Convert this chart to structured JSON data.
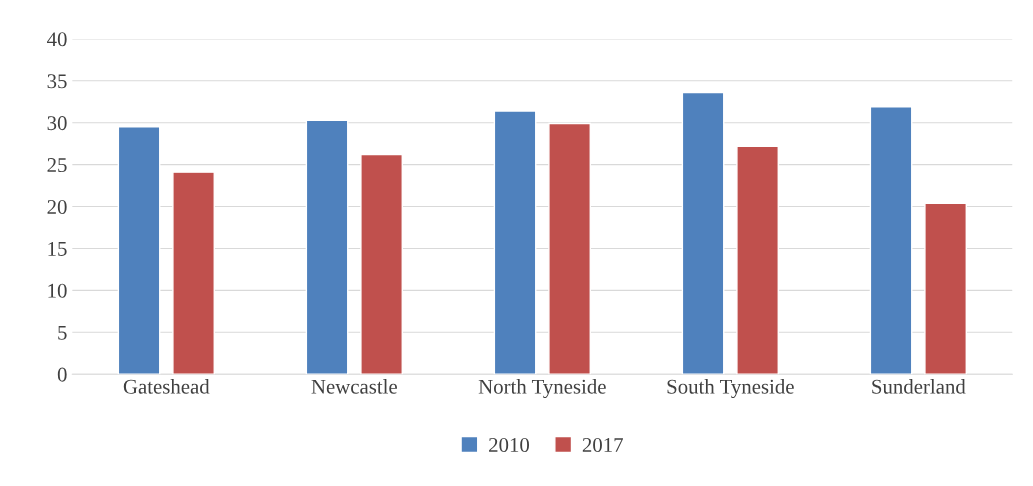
{
  "chart_data": {
    "type": "bar",
    "categories": [
      "Gateshead",
      "Newcastle",
      "North Tyneside",
      "South Tyneside",
      "Sunderland"
    ],
    "series": [
      {
        "name": "2010",
        "color": "#4f81bd",
        "values": [
          29.5,
          30.3,
          31.4,
          33.6,
          31.9
        ]
      },
      {
        "name": "2017",
        "color": "#c0504d",
        "values": [
          24.1,
          26.2,
          29.9,
          27.2,
          20.4
        ]
      }
    ],
    "ylim": [
      0,
      40
    ],
    "yticks": [
      0,
      5,
      10,
      15,
      20,
      25,
      30,
      35,
      40
    ],
    "grid": "y",
    "legend": "bottom"
  }
}
